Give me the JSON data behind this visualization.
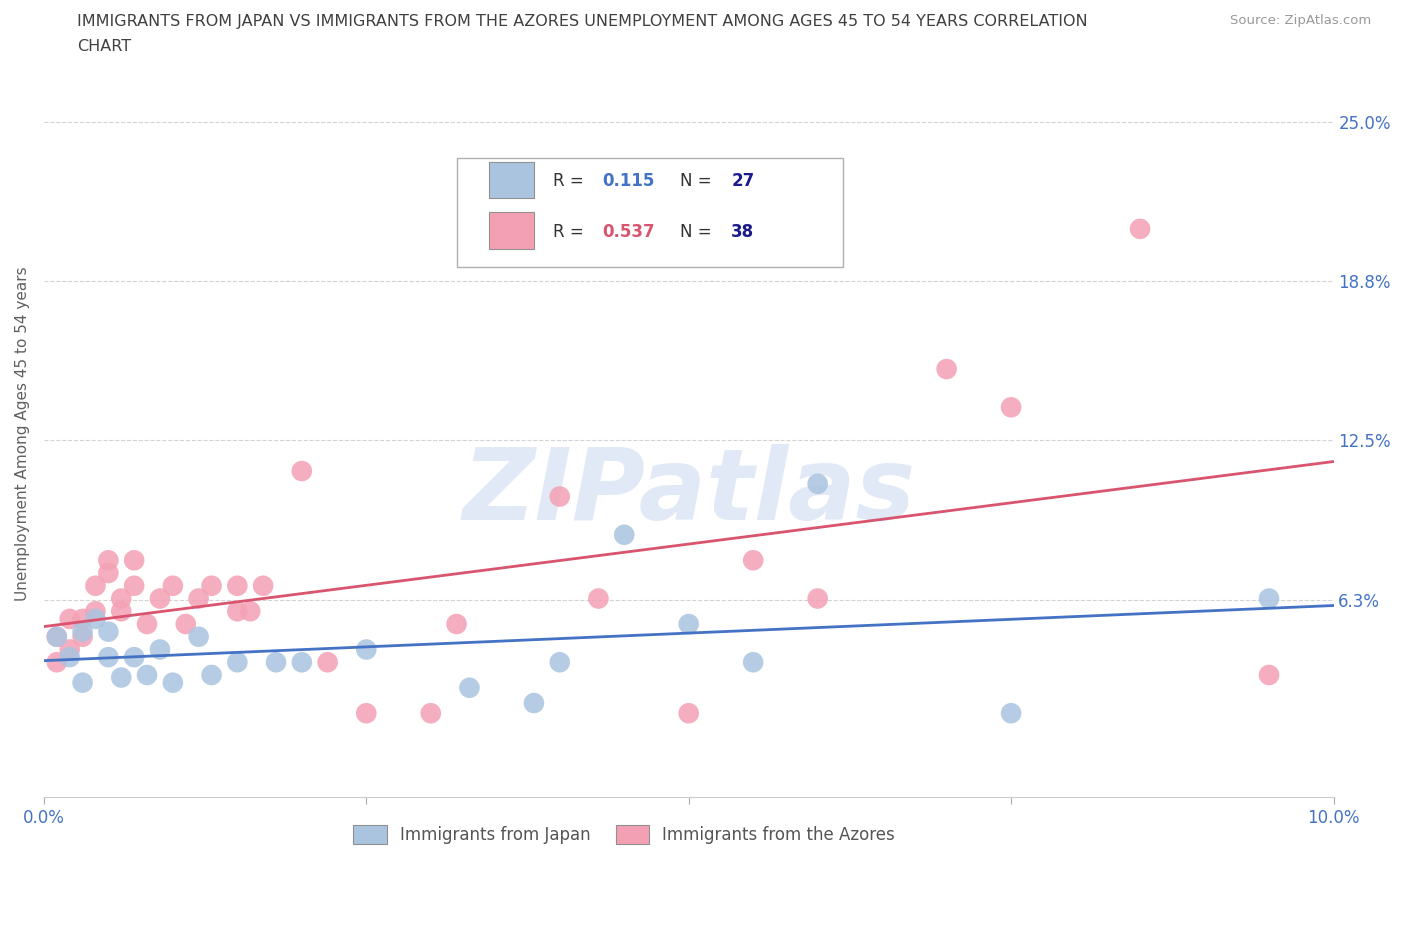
{
  "title_line1": "IMMIGRANTS FROM JAPAN VS IMMIGRANTS FROM THE AZORES UNEMPLOYMENT AMONG AGES 45 TO 54 YEARS CORRELATION",
  "title_line2": "CHART",
  "source": "Source: ZipAtlas.com",
  "ylabel": "Unemployment Among Ages 45 to 54 years",
  "x_min": 0.0,
  "x_max": 0.1,
  "y_min": -0.015,
  "y_max": 0.27,
  "yticks": [
    0.0625,
    0.125,
    0.1875,
    0.25
  ],
  "ytick_labels": [
    "6.3%",
    "12.5%",
    "18.8%",
    "25.0%"
  ],
  "xticks": [
    0.0,
    0.025,
    0.05,
    0.075,
    0.1
  ],
  "xtick_labels": [
    "0.0%",
    "",
    "",
    "",
    "10.0%"
  ],
  "japan_R": 0.115,
  "japan_N": 27,
  "azores_R": 0.537,
  "azores_N": 38,
  "japan_color": "#aac4e0",
  "azores_color": "#f4a0b4",
  "japan_line_color": "#4472c4",
  "azores_line_color": "#d9546e",
  "japan_scatter_x": [
    0.001,
    0.002,
    0.003,
    0.003,
    0.004,
    0.005,
    0.005,
    0.006,
    0.007,
    0.008,
    0.009,
    0.01,
    0.012,
    0.013,
    0.015,
    0.018,
    0.02,
    0.025,
    0.033,
    0.038,
    0.04,
    0.045,
    0.05,
    0.055,
    0.06,
    0.075,
    0.095
  ],
  "japan_scatter_y": [
    0.048,
    0.04,
    0.05,
    0.03,
    0.055,
    0.04,
    0.05,
    0.032,
    0.04,
    0.033,
    0.043,
    0.03,
    0.048,
    0.033,
    0.038,
    0.038,
    0.038,
    0.043,
    0.028,
    0.022,
    0.038,
    0.088,
    0.053,
    0.038,
    0.108,
    0.018,
    0.063
  ],
  "azores_scatter_x": [
    0.001,
    0.001,
    0.002,
    0.002,
    0.003,
    0.003,
    0.004,
    0.004,
    0.005,
    0.005,
    0.006,
    0.006,
    0.007,
    0.007,
    0.008,
    0.009,
    0.01,
    0.011,
    0.012,
    0.013,
    0.015,
    0.015,
    0.016,
    0.017,
    0.02,
    0.022,
    0.025,
    0.03,
    0.032,
    0.04,
    0.043,
    0.05,
    0.055,
    0.06,
    0.07,
    0.075,
    0.085,
    0.095
  ],
  "azores_scatter_y": [
    0.048,
    0.038,
    0.055,
    0.043,
    0.048,
    0.055,
    0.058,
    0.068,
    0.078,
    0.073,
    0.058,
    0.063,
    0.068,
    0.078,
    0.053,
    0.063,
    0.068,
    0.053,
    0.063,
    0.068,
    0.058,
    0.068,
    0.058,
    0.068,
    0.113,
    0.038,
    0.018,
    0.018,
    0.053,
    0.103,
    0.063,
    0.018,
    0.078,
    0.063,
    0.153,
    0.138,
    0.208,
    0.033
  ],
  "watermark": "ZIPatlas",
  "legend_label_japan": "Immigrants from Japan",
  "legend_label_azores": "Immigrants from the Azores",
  "background_color": "#ffffff",
  "grid_color": "#c8c8c8",
  "title_color": "#404040",
  "axis_label_color": "#606060",
  "tick_color": "#4472c4",
  "r_value_color_japan": "#4472c4",
  "r_value_color_azores": "#d9546e",
  "n_value_color": "#1a1a8c"
}
